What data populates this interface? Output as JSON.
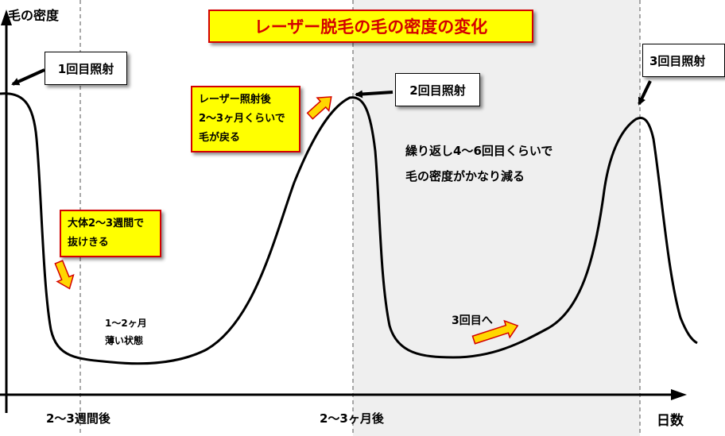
{
  "title": "レーザー脱毛の毛の密度の変化",
  "axes": {
    "y_label": "毛の密度",
    "x_label": "日数"
  },
  "x_ticks": [
    "2～3週間後",
    "2～3ヶ月後"
  ],
  "callouts": {
    "first": "1回目照射",
    "second": "2回目照射",
    "third": "3回目照射"
  },
  "notes": {
    "fall_out": [
      "大体2～3週間で",
      "抜けきる"
    ],
    "return": [
      "レーザー照射後",
      "2～3ヶ月くらいで",
      "毛が戻る"
    ],
    "thin_state": [
      "1～2ヶ月",
      "薄い状態"
    ],
    "reduce": [
      "繰り返し4～6回目くらいで",
      "毛の密度がかなり減る"
    ],
    "to_third": "3回目へ"
  },
  "colors": {
    "title_fill": "#ffff00",
    "title_text": "#d40000",
    "note_border": "#d40000",
    "arrow_fill": "#ffd700",
    "shade": "#efefef"
  }
}
